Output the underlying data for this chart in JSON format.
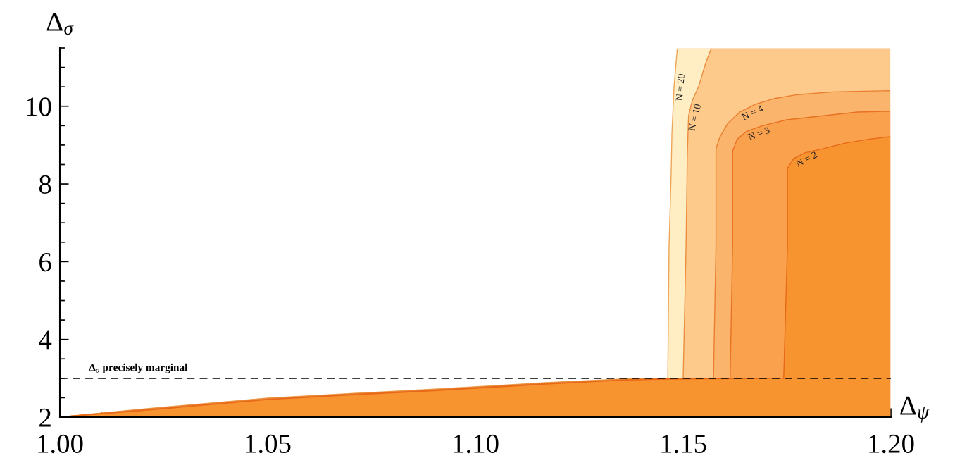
{
  "chart_data": {
    "type": "area",
    "xlabel": "Δ$_{ψ}$",
    "ylabel": "Δ$_{σ}$",
    "xlim": [
      1.0,
      1.2
    ],
    "ylim": [
      2,
      11.5
    ],
    "xticks": [
      {
        "value": 1.0,
        "label": "1.00"
      },
      {
        "value": 1.01,
        "label": null
      },
      {
        "value": 1.02,
        "label": null
      },
      {
        "value": 1.03,
        "label": null
      },
      {
        "value": 1.04,
        "label": null
      },
      1.05,
      {
        "value": 1.06,
        "label": null
      },
      {
        "value": 1.07,
        "label": null
      },
      {
        "value": 1.08,
        "label": null
      },
      {
        "value": 1.09,
        "label": null
      },
      {
        "value": 1.1,
        "label": "1.10"
      },
      {
        "value": 1.11,
        "label": null
      },
      {
        "value": 1.12,
        "label": null
      },
      {
        "value": 1.13,
        "label": null
      },
      {
        "value": 1.14,
        "label": null
      },
      1.15,
      {
        "value": 1.16,
        "label": null
      },
      {
        "value": 1.17,
        "label": null
      },
      {
        "value": 1.18,
        "label": null
      },
      {
        "value": 1.19,
        "label": null
      },
      {
        "value": 1.2,
        "label": "1.20"
      }
    ],
    "yticks": [
      2,
      {
        "value": 2.5,
        "label": null
      },
      {
        "value": 3,
        "label": null
      },
      {
        "value": 3.5,
        "label": null
      },
      4,
      {
        "value": 4.5,
        "label": null
      },
      {
        "value": 5,
        "label": null
      },
      {
        "value": 5.5,
        "label": null
      },
      6,
      {
        "value": 6.5,
        "label": null
      },
      {
        "value": 7,
        "label": null
      },
      {
        "value": 7.5,
        "label": null
      },
      8,
      {
        "value": 8.5,
        "label": null
      },
      {
        "value": 9,
        "label": null
      },
      {
        "value": 9.5,
        "label": null
      },
      10,
      {
        "value": 10.5,
        "label": null
      },
      {
        "value": 11,
        "label": null
      },
      {
        "value": 11.5,
        "label": null
      }
    ],
    "ref_lines": [
      {
        "axis": "y",
        "value": 3,
        "label": "Δ$_{σ}$ precisely marginal",
        "color": "#000000",
        "line_style": "dashed"
      }
    ],
    "series": [
      {
        "name": "N = 20",
        "color": "#ffedc4",
        "x": [
          1.0,
          1.02,
          1.05,
          1.07,
          1.09,
          1.117,
          1.135,
          1.1463,
          1.1466,
          1.1471,
          1.1473,
          1.1478,
          1.1486,
          1.1568
        ],
        "values": [
          2.0,
          2.21,
          2.49,
          2.61,
          2.72,
          2.89,
          2.98,
          3.0,
          6.4,
          8.2,
          9.3,
          10.5,
          11.5,
          11.5
        ]
      },
      {
        "name": "N = 10",
        "color": "#fdca8b",
        "x": [
          1.0,
          1.02,
          1.05,
          1.07,
          1.09,
          1.117,
          1.135,
          1.1463,
          1.15,
          1.1507,
          1.151,
          1.1513,
          1.1522,
          1.1537,
          1.1554,
          1.1568,
          1.2
        ],
        "values": [
          2.0,
          2.2,
          2.48,
          2.6,
          2.71,
          2.88,
          2.97,
          2.99,
          3.0,
          6.4,
          8.75,
          9.75,
          10.15,
          10.5,
          11.1,
          11.5,
          11.5
        ]
      },
      {
        "name": "N = 4",
        "color": "#fbb46c",
        "x": [
          1.0,
          1.02,
          1.05,
          1.07,
          1.09,
          1.117,
          1.135,
          1.1463,
          1.1573,
          1.1579,
          1.1579,
          1.1588,
          1.1607,
          1.1636,
          1.1674,
          1.172,
          1.1776,
          1.1861,
          1.2
        ],
        "values": [
          2.0,
          2.19,
          2.47,
          2.59,
          2.7,
          2.87,
          2.96,
          2.99,
          3.0,
          6.4,
          8.9,
          9.2,
          9.55,
          9.85,
          10.05,
          10.2,
          10.3,
          10.37,
          10.4
        ]
      },
      {
        "name": "N = 3",
        "color": "#faa14d",
        "x": [
          1.0,
          1.02,
          1.05,
          1.07,
          1.09,
          1.117,
          1.135,
          1.1463,
          1.1613,
          1.1619,
          1.1619,
          1.163,
          1.1652,
          1.1691,
          1.1749,
          1.1834,
          1.1919,
          1.2
        ],
        "values": [
          2.0,
          2.18,
          2.46,
          2.58,
          2.69,
          2.86,
          2.95,
          2.98,
          3.0,
          6.4,
          8.85,
          9.15,
          9.35,
          9.5,
          9.65,
          9.75,
          9.85,
          9.87
        ]
      },
      {
        "name": "N = 2",
        "color": "#f89430",
        "x": [
          1.0,
          1.02,
          1.05,
          1.07,
          1.09,
          1.117,
          1.135,
          1.1463,
          1.1742,
          1.1751,
          1.1751,
          1.1766,
          1.1793,
          1.1834,
          1.189,
          1.1946,
          1.2
        ],
        "values": [
          2.0,
          2.17,
          2.45,
          2.57,
          2.68,
          2.85,
          2.95,
          2.98,
          3.0,
          6.4,
          8.4,
          8.65,
          8.8,
          8.9,
          9.05,
          9.15,
          9.22
        ]
      }
    ]
  }
}
